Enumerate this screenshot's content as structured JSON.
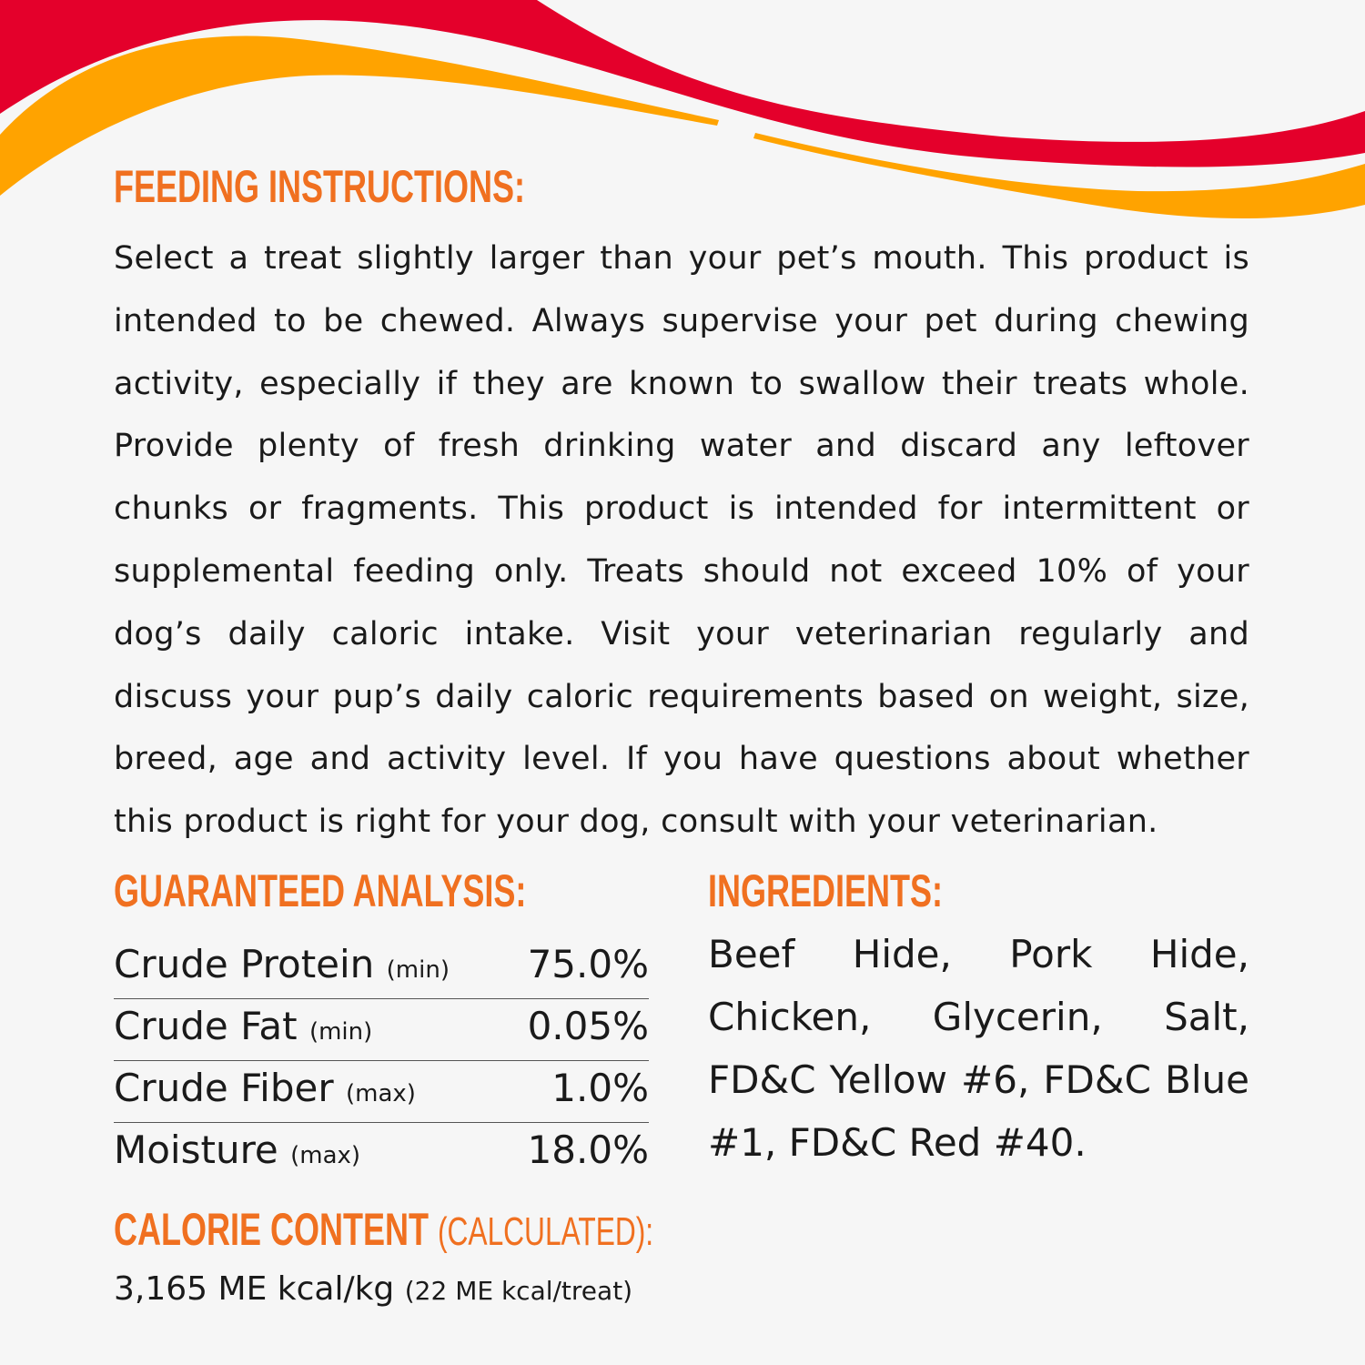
{
  "colors": {
    "red_wave": "#e4002b",
    "orange_wave": "#ffa300",
    "heading": "#f07020",
    "background": "#f6f6f6"
  },
  "feeding": {
    "title": "FEEDING INSTRUCTIONS:",
    "text": "Select a treat slightly larger than your pet’s mouth. This product is intended to be chewed. Always supervise your pet during chewing activity, especially if they are known to swallow their treats whole. Provide plenty of fresh drinking water and discard any leftover chunks or fragments. This product is intended for intermittent or supplemental feeding only. Treats should not exceed 10% of your dog’s daily caloric intake. Visit your veterinarian regularly and discuss your pup’s daily caloric requirements based on weight, size, breed, age and activity level. If you have questions about whether this product is right for your dog, consult with your veterinarian."
  },
  "analysis": {
    "title": "GUARANTEED ANALYSIS:",
    "rows": [
      {
        "name": "Crude Protein",
        "qualifier": "(min)",
        "value": "75.0%"
      },
      {
        "name": "Crude Fat",
        "qualifier": "(min)",
        "value": "0.05%"
      },
      {
        "name": "Crude Fiber",
        "qualifier": "(max)",
        "value": "1.0%"
      },
      {
        "name": "Moisture",
        "qualifier": "(max)",
        "value": "18.0%"
      }
    ]
  },
  "ingredients": {
    "title": "INGREDIENTS:",
    "text": "Beef Hide, Pork Hide, Chicken, Glycerin, Salt, FD&C Yellow #6, FD&C Blue #1, FD&C Red #40."
  },
  "calorie": {
    "title": "CALORIE CONTENT",
    "title_sub": "(CALCULATED):",
    "value": "3,165 ME kcal/kg",
    "per_treat": "(22 ME kcal/treat)"
  }
}
